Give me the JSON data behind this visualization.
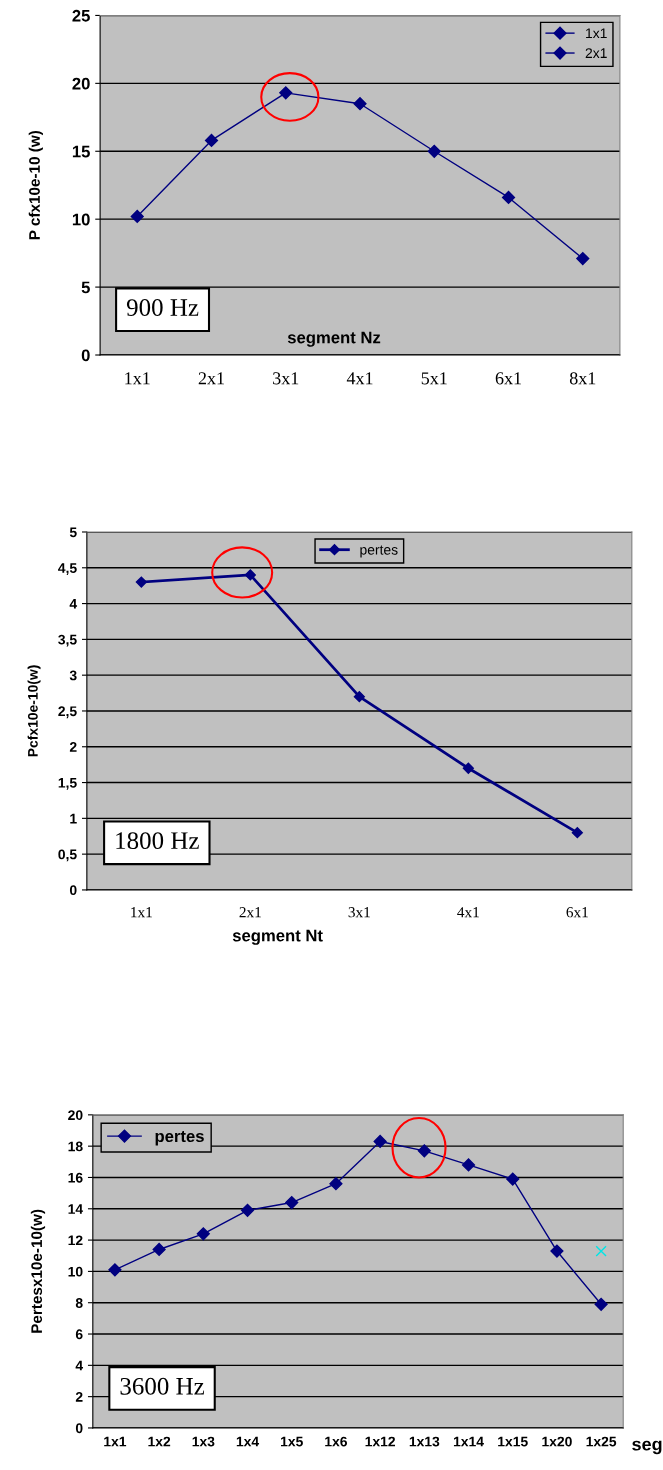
{
  "chart_data": [
    {
      "type": "line",
      "ylabel": "P cfx10e-10 (w)",
      "xlabel": "segment Nz",
      "categories": [
        "1x1",
        "2x1",
        "3x1",
        "4x1",
        "5x1",
        "6x1",
        "8x1"
      ],
      "series": [
        {
          "name": "1x1",
          "color": "#000080",
          "values": [
            10.2,
            15.8,
            19.3,
            18.5,
            15.0,
            11.6,
            7.1
          ]
        },
        {
          "name": "2x1",
          "color": "#000080",
          "values": [
            null,
            null,
            null,
            null,
            null,
            null,
            null
          ]
        }
      ],
      "ylim": [
        0,
        25
      ],
      "yticks": [
        0,
        5,
        10,
        15,
        20,
        25
      ],
      "grid": "y",
      "legend": "top right",
      "marker": "diamond",
      "line_style": "solid",
      "annotations": [
        "900 Hz"
      ]
    },
    {
      "type": "line",
      "ylabel": "Pcfx10e-10(w)",
      "xlabel": "segment Nt",
      "categories": [
        "1x1",
        "2x1",
        "3x1",
        "4x1",
        "6x1"
      ],
      "series": [
        {
          "name": "pertes",
          "color": "#000080",
          "values": [
            4.3,
            4.4,
            2.7,
            1.7,
            0.8
          ]
        }
      ],
      "ylim": [
        0,
        5
      ],
      "yticks": [
        0,
        {
          "value": 0.5,
          "label": "0,5"
        },
        1,
        {
          "value": 1.5,
          "label": "1,5"
        },
        2,
        {
          "value": 2.5,
          "label": "2,5"
        },
        3,
        {
          "value": 3.5,
          "label": "3,5"
        },
        4,
        {
          "value": 4.5,
          "label": "4,5"
        },
        5
      ],
      "grid": "y",
      "legend": "top",
      "marker": "diamond",
      "line_style": "solid",
      "annotations": [
        "1800 Hz"
      ]
    },
    {
      "type": "line",
      "ylabel": "Pertesx10e-10(w)",
      "xlabel": "seg",
      "categories": [
        "1x1",
        "1x2",
        "1x3",
        "1x4",
        "1x5",
        "1x6",
        "1x12",
        "1x13",
        "1x14",
        "1x15",
        "1x20",
        "1x25"
      ],
      "series": [
        {
          "name": "pertes",
          "color": "#000080",
          "values": [
            10.1,
            11.4,
            12.4,
            13.9,
            14.4,
            15.6,
            18.3,
            17.7,
            16.8,
            15.9,
            11.3,
            7.9
          ]
        },
        {
          "type": "scatter",
          "marker": "cross",
          "color": "#00e5e5",
          "values": [
            null,
            null,
            null,
            null,
            null,
            null,
            null,
            null,
            null,
            null,
            null,
            11.3
          ]
        }
      ],
      "ylim": [
        0,
        20
      ],
      "yticks": [
        0,
        2,
        4,
        6,
        8,
        10,
        12,
        14,
        16,
        18,
        20
      ],
      "grid": "y",
      "legend": "top left",
      "marker": "diamond",
      "line_style": "solid",
      "annotations": [
        "3600 Hz"
      ]
    }
  ]
}
